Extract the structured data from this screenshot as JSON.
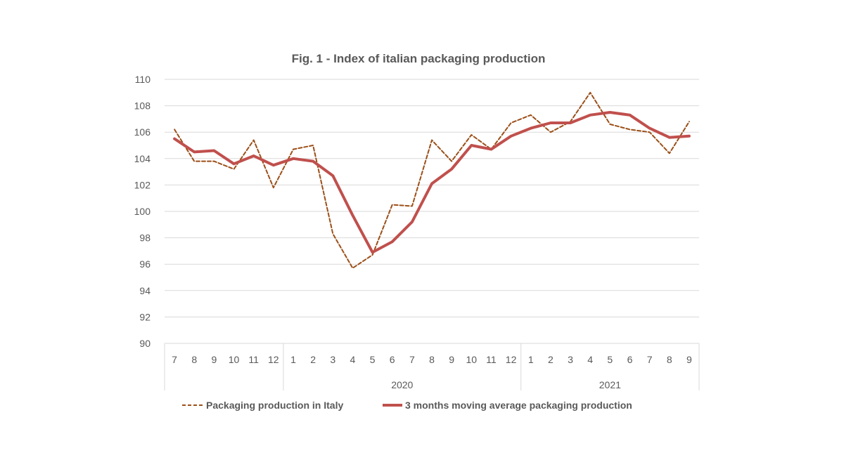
{
  "chart_data": {
    "type": "line",
    "title": "Fig. 1 - Index of italian packaging production",
    "xlabel": "",
    "ylabel": "",
    "ylim": [
      90,
      110
    ],
    "y_ticks": [
      110,
      108,
      106,
      104,
      102,
      100,
      98,
      96,
      94,
      92,
      90
    ],
    "grid": "horizontal",
    "legend": "bottom",
    "x": [
      "7",
      "8",
      "9",
      "10",
      "11",
      "12",
      "1",
      "2",
      "3",
      "4",
      "5",
      "6",
      "7",
      "8",
      "9",
      "10",
      "11",
      "12",
      "1",
      "2",
      "3",
      "4",
      "5",
      "6",
      "7",
      "8",
      "9"
    ],
    "year_groups": [
      {
        "label": "",
        "start": 0,
        "end": 5
      },
      {
        "label": "2020",
        "start": 6,
        "end": 17
      },
      {
        "label": "2021",
        "start": 18,
        "end": 26
      }
    ],
    "series": [
      {
        "name": "Packaging production in Italy",
        "color": "#9C4F18",
        "style": "dashed",
        "values": [
          106.2,
          103.8,
          103.8,
          103.2,
          105.4,
          101.8,
          104.7,
          105.0,
          98.3,
          95.7,
          96.7,
          100.5,
          100.4,
          105.4,
          103.8,
          105.8,
          104.7,
          106.7,
          107.3,
          106.0,
          106.8,
          109.0,
          106.6,
          106.2,
          106.0,
          104.4,
          106.8
        ]
      },
      {
        "name": "3 months moving average packaging production",
        "color": "#C0504D",
        "style": "solid",
        "values": [
          105.5,
          104.5,
          104.6,
          103.6,
          104.2,
          103.5,
          104.0,
          103.8,
          102.7,
          99.7,
          96.9,
          97.7,
          99.2,
          102.1,
          103.2,
          105.0,
          104.7,
          105.7,
          106.3,
          106.7,
          106.7,
          107.3,
          107.5,
          107.3,
          106.3,
          105.6,
          105.7
        ]
      }
    ]
  }
}
